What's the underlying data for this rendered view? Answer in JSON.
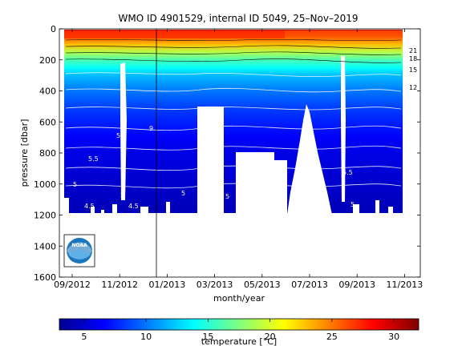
{
  "chart_data": {
    "type": "heatmap",
    "title": "WMO ID 4901529, internal ID 5049, 25–Nov–2019",
    "xlabel": "month/year",
    "ylabel": "pressure [dbar]",
    "x_ticks": [
      "09/2012",
      "11/2012",
      "01/2013",
      "03/2013",
      "05/2013",
      "07/2013",
      "09/2013",
      "11/2013"
    ],
    "y_ticks": [
      0,
      200,
      400,
      600,
      800,
      1000,
      1200,
      1400,
      1600
    ],
    "ylim": [
      1600,
      0
    ],
    "colorbar": {
      "label": "temperature [°C]",
      "ticks": [
        5,
        10,
        15,
        20,
        25,
        30
      ],
      "range": [
        3,
        32
      ]
    },
    "contour_labels": [
      "21",
      "18",
      "15",
      "12",
      "9",
      "5.5",
      "5",
      "5.5",
      "5",
      "4.5",
      "5",
      "4.5",
      "5",
      "5",
      "5.5",
      "5",
      "5.5",
      "5",
      "5",
      "4.5"
    ],
    "temperature_profile": [
      {
        "pressure": 0,
        "temperature": 30
      },
      {
        "pressure": 20,
        "temperature": 29
      },
      {
        "pressure": 50,
        "temperature": 26
      },
      {
        "pressure": 100,
        "temperature": 23
      },
      {
        "pressure": 150,
        "temperature": 19
      },
      {
        "pressure": 200,
        "temperature": 16
      },
      {
        "pressure": 250,
        "temperature": 14
      },
      {
        "pressure": 300,
        "temperature": 12
      },
      {
        "pressure": 400,
        "temperature": 10
      },
      {
        "pressure": 500,
        "temperature": 8.5
      },
      {
        "pressure": 600,
        "temperature": 7.5
      },
      {
        "pressure": 700,
        "temperature": 6.5
      },
      {
        "pressure": 800,
        "temperature": 5.8
      },
      {
        "pressure": 1000,
        "temperature": 5
      },
      {
        "pressure": 1200,
        "temperature": 4.3
      }
    ],
    "colormap": [
      "#00008f",
      "#0000ff",
      "#0080ff",
      "#00ffff",
      "#80ff80",
      "#ffff00",
      "#ff8000",
      "#ff0000",
      "#800000"
    ],
    "grid": false,
    "logo_text": "NOAA"
  }
}
